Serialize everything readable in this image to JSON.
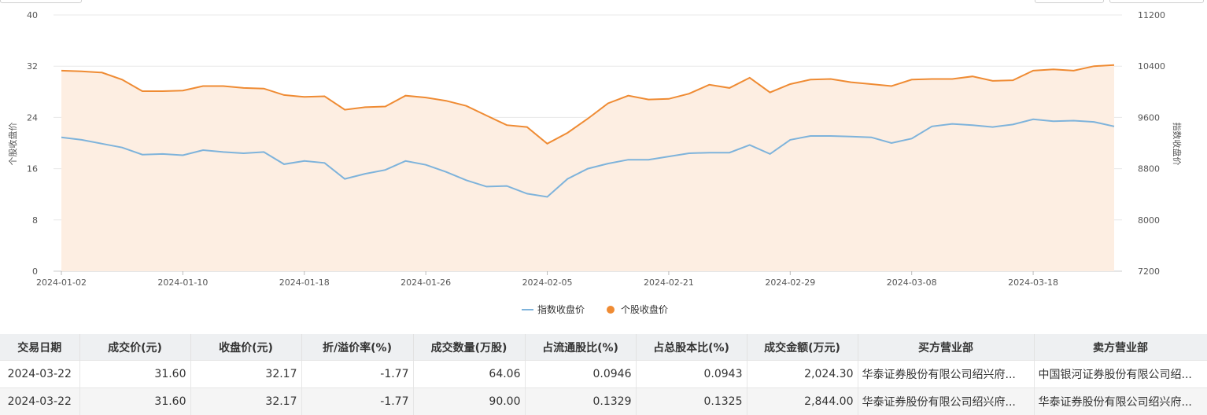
{
  "chart_data": {
    "type": "line",
    "x": [
      "2024-01-02",
      "2024-01-03",
      "2024-01-04",
      "2024-01-05",
      "2024-01-08",
      "2024-01-09",
      "2024-01-10",
      "2024-01-11",
      "2024-01-12",
      "2024-01-15",
      "2024-01-16",
      "2024-01-17",
      "2024-01-18",
      "2024-01-19",
      "2024-01-22",
      "2024-01-23",
      "2024-01-24",
      "2024-01-25",
      "2024-01-26",
      "2024-01-29",
      "2024-01-30",
      "2024-01-31",
      "2024-02-01",
      "2024-02-02",
      "2024-02-05",
      "2024-02-06",
      "2024-02-07",
      "2024-02-08",
      "2024-02-19",
      "2024-02-20",
      "2024-02-21",
      "2024-02-22",
      "2024-02-23",
      "2024-02-26",
      "2024-02-27",
      "2024-02-28",
      "2024-02-29",
      "2024-03-01",
      "2024-03-04",
      "2024-03-05",
      "2024-03-06",
      "2024-03-07",
      "2024-03-08",
      "2024-03-11",
      "2024-03-12",
      "2024-03-13",
      "2024-03-14",
      "2024-03-15",
      "2024-03-18",
      "2024-03-19",
      "2024-03-20",
      "2024-03-21",
      "2024-03-22"
    ],
    "x_ticks": [
      "2024-01-02",
      "2024-01-10",
      "2024-01-18",
      "2024-01-26",
      "2024-02-05",
      "2024-02-21",
      "2024-02-29",
      "2024-03-08",
      "2024-03-18"
    ],
    "series": [
      {
        "name": "指数收盘价",
        "axis": "right",
        "color": "#7eb3db",
        "values": [
          9290,
          9250,
          9190,
          9130,
          9020,
          9030,
          9010,
          9090,
          9060,
          9040,
          9060,
          8870,
          8920,
          8890,
          8640,
          8720,
          8780,
          8920,
          8860,
          8750,
          8620,
          8520,
          8530,
          8410,
          8360,
          8640,
          8800,
          8880,
          8940,
          8940,
          8990,
          9040,
          9050,
          9050,
          9170,
          9030,
          9250,
          9310,
          9310,
          9300,
          9290,
          9200,
          9270,
          9460,
          9500,
          9480,
          9450,
          9490,
          9570,
          9540,
          9550,
          9530,
          9460
        ]
      },
      {
        "name": "个股收盘价",
        "axis": "left",
        "color": "#ef8b33",
        "values": [
          31.3,
          31.2,
          31.0,
          29.9,
          28.1,
          28.1,
          28.2,
          28.9,
          28.9,
          28.6,
          28.5,
          27.5,
          27.2,
          27.3,
          25.2,
          25.6,
          25.7,
          27.4,
          27.1,
          26.6,
          25.8,
          24.3,
          22.8,
          22.5,
          19.9,
          21.6,
          23.8,
          26.2,
          27.4,
          26.8,
          26.9,
          27.7,
          29.1,
          28.6,
          30.2,
          27.9,
          29.2,
          29.9,
          30.0,
          29.5,
          29.2,
          28.9,
          29.9,
          30.0,
          30.0,
          30.4,
          29.7,
          29.8,
          31.3,
          31.5,
          31.3,
          32.0,
          32.17
        ]
      }
    ],
    "ylim_left": [
      0,
      40
    ],
    "yticks_left": [
      0,
      8,
      16,
      24,
      32,
      40
    ],
    "ylabel_left": "个股收盘价",
    "ylim_right": [
      7200,
      11200
    ],
    "yticks_right": [
      7200,
      8000,
      8800,
      9600,
      10400,
      11200
    ],
    "ylabel_right": "指数收盘价",
    "grid": true,
    "legend_placement": "bottom-center",
    "area_fill_color": "#fdeee2"
  },
  "table": {
    "headers": [
      "交易日期",
      "成交价(元)",
      "收盘价(元)",
      "折/溢价率(%)",
      "成交数量(万股)",
      "占流通股比(%)",
      "占总股本比(%)",
      "成交金额(万元)",
      "买方营业部",
      "卖方营业部"
    ],
    "rows": [
      [
        "2024-03-22",
        "31.60",
        "32.17",
        "-1.77",
        "64.06",
        "0.0946",
        "0.0943",
        "2,024.30",
        "华泰证券股份有限公司绍兴府...",
        "中国银河证券股份有限公司绍..."
      ],
      [
        "2024-03-22",
        "31.60",
        "32.17",
        "-1.77",
        "90.00",
        "0.1329",
        "0.1325",
        "2,844.00",
        "华泰证券股份有限公司绍兴府...",
        "华泰证券股份有限公司绍兴府..."
      ]
    ]
  }
}
